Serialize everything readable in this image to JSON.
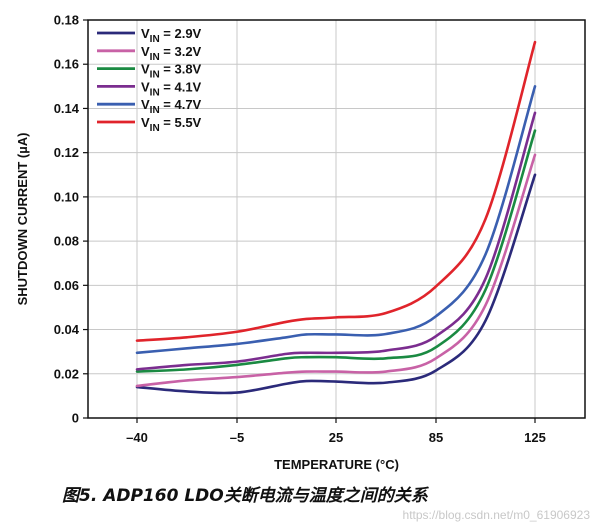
{
  "chart_data": {
    "type": "line",
    "xlabel": "TEMPERATURE (°C)",
    "ylabel": "SHUTDOWN CURRENT (µA)",
    "x_categories": [
      "–40",
      "–5",
      "25",
      "85",
      "125"
    ],
    "ylim": [
      0,
      0.18
    ],
    "y_ticks": [
      "0",
      "0.02",
      "0.04",
      "0.06",
      "0.08",
      "0.10",
      "0.12",
      "0.14",
      "0.16",
      "0.18"
    ],
    "grid": true,
    "legend_position": "top-left",
    "series": [
      {
        "name": "V",
        "sub": "IN",
        "suffix": " = 2.9V",
        "color": "#2b2a7a",
        "points": [
          [
            0,
            0.014
          ],
          [
            0.5,
            0.012
          ],
          [
            1,
            0.0115
          ],
          [
            1.5,
            0.0155
          ],
          [
            1.7,
            0.0167
          ],
          [
            2,
            0.0165
          ],
          [
            2.5,
            0.016
          ],
          [
            3,
            0.0215
          ],
          [
            3.5,
            0.044
          ],
          [
            4,
            0.11
          ]
        ]
      },
      {
        "name": "V",
        "sub": "IN",
        "suffix": " = 3.2V",
        "color": "#c862a6",
        "points": [
          [
            0,
            0.0145
          ],
          [
            0.5,
            0.017
          ],
          [
            1,
            0.0185
          ],
          [
            1.5,
            0.0205
          ],
          [
            1.7,
            0.021
          ],
          [
            2,
            0.021
          ],
          [
            2.5,
            0.021
          ],
          [
            3,
            0.027
          ],
          [
            3.5,
            0.051
          ],
          [
            4,
            0.119
          ]
        ]
      },
      {
        "name": "V",
        "sub": "IN",
        "suffix": " = 3.8V",
        "color": "#1a8a42",
        "points": [
          [
            0,
            0.021
          ],
          [
            0.5,
            0.022
          ],
          [
            1,
            0.024
          ],
          [
            1.5,
            0.027
          ],
          [
            1.7,
            0.0275
          ],
          [
            2,
            0.0275
          ],
          [
            2.5,
            0.027
          ],
          [
            3,
            0.032
          ],
          [
            3.5,
            0.058
          ],
          [
            4,
            0.13
          ]
        ]
      },
      {
        "name": "V",
        "sub": "IN",
        "suffix": " = 4.1V",
        "color": "#7b2d8f",
        "points": [
          [
            0,
            0.022
          ],
          [
            0.5,
            0.024
          ],
          [
            1,
            0.0255
          ],
          [
            1.5,
            0.029
          ],
          [
            1.7,
            0.0295
          ],
          [
            2,
            0.0295
          ],
          [
            2.5,
            0.0305
          ],
          [
            3,
            0.037
          ],
          [
            3.5,
            0.063
          ],
          [
            4,
            0.138
          ]
        ]
      },
      {
        "name": "V",
        "sub": "IN",
        "suffix": " = 4.7V",
        "color": "#3a5fb0",
        "points": [
          [
            0,
            0.0295
          ],
          [
            0.5,
            0.0315
          ],
          [
            1,
            0.0335
          ],
          [
            1.5,
            0.0365
          ],
          [
            1.7,
            0.0378
          ],
          [
            2,
            0.0378
          ],
          [
            2.5,
            0.038
          ],
          [
            3,
            0.046
          ],
          [
            3.5,
            0.074
          ],
          [
            4,
            0.15
          ]
        ]
      },
      {
        "name": "V",
        "sub": "IN",
        "suffix": " = 5.5V",
        "color": "#e0242b",
        "points": [
          [
            0,
            0.035
          ],
          [
            0.5,
            0.0365
          ],
          [
            1,
            0.039
          ],
          [
            1.5,
            0.0435
          ],
          [
            1.7,
            0.0448
          ],
          [
            2,
            0.0455
          ],
          [
            2.5,
            0.0475
          ],
          [
            3,
            0.0595
          ],
          [
            3.5,
            0.09
          ],
          [
            4,
            0.17
          ]
        ]
      }
    ]
  },
  "caption": "图5. ADP160 LDO关断电流与温度之间的关系",
  "watermark": "https://blog.csdn.net/m0_61906923"
}
